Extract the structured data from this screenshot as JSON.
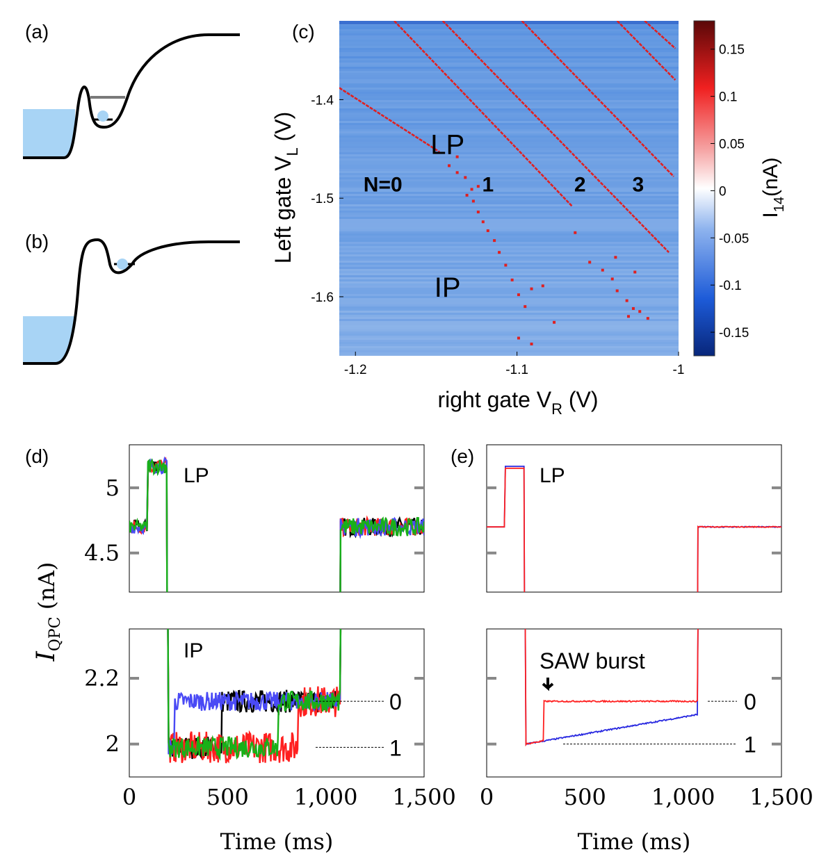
{
  "panels": {
    "a": "(a)",
    "b": "(b)",
    "c": "(c)",
    "d": "(d)",
    "e": "(e)"
  },
  "colors": {
    "reservoir": "#a8d4f5",
    "electron": "#a8d4f5",
    "map_base": "#6e9fe2",
    "map_line": "#e02020",
    "trace_black": "#000000",
    "trace_red": "#ff2020",
    "trace_blue": "#4a4af5",
    "trace_green": "#18b018",
    "trace_e_red": "#ff2020",
    "trace_e_blue": "#2828e0"
  },
  "chart_data": [
    {
      "id": "c",
      "type": "heatmap",
      "title": "",
      "xlabel_main": "right gate V",
      "xlabel_sub": "R",
      "xlabel_unit": " (V)",
      "ylabel_main": "Left gate V",
      "ylabel_sub": "L",
      "ylabel_unit": " (V)",
      "xlim": [
        -1.21,
        -1.0
      ],
      "ylim": [
        -1.66,
        -1.32
      ],
      "x_ticks": [
        -1.2,
        -1.1,
        -1.0
      ],
      "x_tick_labels": [
        "-1.2",
        "-1.1",
        "-1"
      ],
      "y_ticks": [
        -1.4,
        -1.5,
        -1.6
      ],
      "y_tick_labels": [
        "-1.4",
        "-1.5",
        "-1.6"
      ],
      "transitions": [
        {
          "x1": -1.21,
          "y1": -1.388,
          "x2": -1.148,
          "y2": -1.453
        },
        {
          "x1": -1.176,
          "y1": -1.32,
          "x2": -1.066,
          "y2": -1.508
        },
        {
          "x1": -1.146,
          "y1": -1.32,
          "x2": -1.006,
          "y2": -1.555
        },
        {
          "x1": -1.097,
          "y1": -1.32,
          "x2": -1.003,
          "y2": -1.478
        },
        {
          "x1": -1.038,
          "y1": -1.32,
          "x2": -1.002,
          "y2": -1.38
        },
        {
          "x1": -1.021,
          "y1": -1.32,
          "x2": -1.002,
          "y2": -1.348
        }
      ],
      "dots": [
        [
          -1.137,
          -1.458
        ],
        [
          -1.142,
          -1.467
        ],
        [
          -1.137,
          -1.474
        ],
        [
          -1.132,
          -1.479
        ],
        [
          -1.128,
          -1.491
        ],
        [
          -1.124,
          -1.488
        ],
        [
          -1.131,
          -1.497
        ],
        [
          -1.127,
          -1.503
        ],
        [
          -1.124,
          -1.514
        ],
        [
          -1.121,
          -1.524
        ],
        [
          -1.118,
          -1.533
        ],
        [
          -1.114,
          -1.543
        ],
        [
          -1.111,
          -1.555
        ],
        [
          -1.107,
          -1.568
        ],
        [
          -1.103,
          -1.583
        ],
        [
          -1.099,
          -1.598
        ],
        [
          -1.091,
          -1.592
        ],
        [
          -1.095,
          -1.61
        ],
        [
          -1.084,
          -1.589
        ],
        [
          -1.099,
          -1.642
        ],
        [
          -1.091,
          -1.648
        ],
        [
          -1.077,
          -1.626
        ],
        [
          -1.064,
          -1.535
        ],
        [
          -1.055,
          -1.565
        ],
        [
          -1.047,
          -1.573
        ],
        [
          -1.041,
          -1.582
        ],
        [
          -1.038,
          -1.594
        ],
        [
          -1.032,
          -1.604
        ],
        [
          -1.028,
          -1.612
        ],
        [
          -1.024,
          -1.615
        ],
        [
          -1.019,
          -1.622
        ],
        [
          -1.031,
          -1.62
        ],
        [
          -1.027,
          -1.575
        ],
        [
          -1.039,
          -1.56
        ]
      ],
      "annotations": [
        {
          "text": "LP",
          "x": -1.143,
          "y": -1.455,
          "bold": false
        },
        {
          "text": "IP",
          "x": -1.143,
          "y": -1.6,
          "bold": false
        },
        {
          "text": "N=0",
          "x": -1.183,
          "y": -1.493,
          "bold": true
        },
        {
          "text": "1",
          "x": -1.118,
          "y": -1.493,
          "bold": true
        },
        {
          "text": "2",
          "x": -1.061,
          "y": -1.493,
          "bold": true
        },
        {
          "text": "3",
          "x": -1.025,
          "y": -1.493,
          "bold": true
        }
      ],
      "colorbar": {
        "label_main": "I",
        "label_sub": "14",
        "label_unit": "(nA)",
        "range": [
          -0.175,
          0.18
        ],
        "ticks": [
          0.15,
          0.1,
          0.05,
          0,
          -0.05,
          -0.1,
          -0.15
        ],
        "tick_labels": [
          "0.15",
          "0.1",
          "0.05",
          "0",
          "-0.05",
          "-0.1",
          "-0.15"
        ]
      }
    },
    {
      "id": "d",
      "type": "line",
      "xlabel": "Time (ms)",
      "ylabel_main": "I",
      "ylabel_sub": "QPC",
      "ylabel_unit": " (nA)",
      "xlim": [
        0,
        1500
      ],
      "x_ticks": [
        0,
        500,
        1000,
        1500
      ],
      "x_tick_labels": [
        "0",
        "500",
        "1,000",
        "1,500"
      ],
      "top": {
        "label": "LP",
        "ylim": [
          4.2,
          5.33
        ],
        "y_ticks": [
          5,
          4.5
        ],
        "y_tick_labels": [
          "5",
          "4.5"
        ]
      },
      "bottom": {
        "label": "IP",
        "ylim": [
          1.9,
          2.35
        ],
        "y_ticks": [
          2.2,
          2.0
        ],
        "y_tick_labels": [
          "2.2",
          "2"
        ]
      },
      "levels": [
        {
          "label": "0",
          "y": 2.13
        },
        {
          "label": "1",
          "y": 1.99
        }
      ],
      "series": [
        {
          "name": "black",
          "noise": 0.022,
          "switch_ms": 470,
          "order": 0
        },
        {
          "name": "red",
          "noise": 0.03,
          "switch_ms": 860,
          "order": 1
        },
        {
          "name": "blue",
          "noise": 0.018,
          "switch_ms": 230,
          "order": 2
        },
        {
          "name": "green",
          "noise": 0.02,
          "switch_ms": 760,
          "order": 3
        }
      ],
      "baseline_lp": 4.7,
      "pulse_lp": 5.17,
      "pulse_on_ms": 95,
      "pulse_off_ms": 195,
      "release_ms": 1075
    },
    {
      "id": "e",
      "type": "line",
      "xlabel": "Time (ms)",
      "xlim": [
        0,
        1500
      ],
      "x_ticks": [
        0,
        500,
        1000,
        1500
      ],
      "x_tick_labels": [
        "0",
        "500",
        "1,000",
        "1,500"
      ],
      "top": {
        "label": "LP",
        "ylim": [
          4.2,
          5.33
        ],
        "y_ticks": [
          5,
          4.5
        ],
        "y_tick_labels": [
          "5",
          "4.5"
        ]
      },
      "bottom": {
        "label": "",
        "ylim": [
          1.9,
          2.35
        ],
        "y_ticks": [
          2.2,
          2.0
        ],
        "y_tick_labels": [
          "2.2",
          "2"
        ]
      },
      "annotation": "SAW burst",
      "burst_ms": 290,
      "levels": [
        {
          "label": "0",
          "y": 2.13
        },
        {
          "label": "1",
          "y": 2.0
        }
      ],
      "series": [
        {
          "name": "blue",
          "start": 2.0,
          "end": 2.09
        },
        {
          "name": "red",
          "start": 2.0,
          "end": 2.13
        }
      ],
      "baseline_lp": 4.7,
      "pulse_lp": 5.15,
      "pulse_on_ms": 95,
      "pulse_off_ms": 195,
      "release_ms": 1075
    }
  ]
}
